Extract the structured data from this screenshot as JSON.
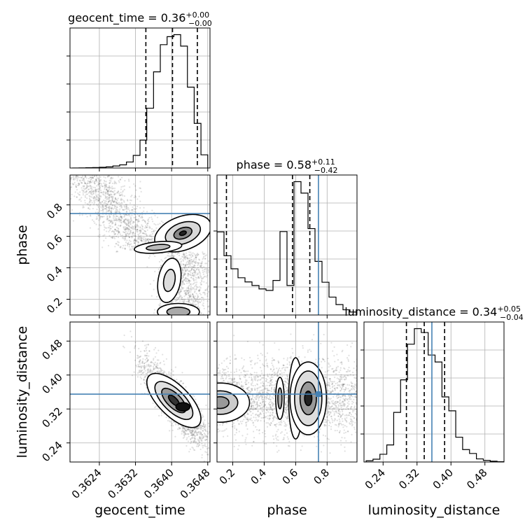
{
  "chart_data": {
    "type": "corner",
    "parameters": [
      "geocent_time",
      "phase",
      "luminosity_distance"
    ],
    "truth_color": "#4682b4",
    "truths": {
      "geocent_time": null,
      "phase": 0.745,
      "luminosity_distance": 0.355
    },
    "ranges": {
      "geocent_time": [
        0.36175,
        0.36485
      ],
      "phase": [
        0.1,
        0.99
      ],
      "luminosity_distance": [
        0.195,
        0.525
      ]
    },
    "titles": {
      "geocent_time": {
        "name": "geocent_time",
        "median": "0.36",
        "plus": "+0.00",
        "minus": "−0.00"
      },
      "phase": {
        "name": "phase",
        "median": "0.58",
        "plus": "+0.11",
        "minus": "−0.42"
      },
      "luminosity_distance": {
        "name": "luminosity_distance",
        "median": "0.34",
        "plus": "+0.05",
        "minus": "−0.04"
      }
    },
    "ticks": {
      "geocent_time": {
        "values": [
          0.3624,
          0.3632,
          0.364,
          0.3648
        ],
        "labels": [
          "0.3624",
          "0.3632",
          "0.3640",
          "0.3648"
        ]
      },
      "phase_x": {
        "values": [
          0.2,
          0.4,
          0.6,
          0.8
        ],
        "labels": [
          "0.2",
          "0.4",
          "0.6",
          "0.8"
        ]
      },
      "phase_y": {
        "values": [
          0.2,
          0.4,
          0.6,
          0.8
        ],
        "labels": [
          "0.2",
          "0.4",
          "0.6",
          "0.8"
        ]
      },
      "luminosity_distance": {
        "values": [
          0.24,
          0.32,
          0.4,
          0.48
        ],
        "labels": [
          "0.24",
          "0.32",
          "0.40",
          "0.48"
        ]
      }
    },
    "quantiles": {
      "geocent_time": [
        0.36343,
        0.36402,
        0.36457
      ],
      "phase": [
        0.16,
        0.58,
        0.69
      ],
      "luminosity_distance": [
        0.295,
        0.337,
        0.385
      ]
    },
    "histograms": {
      "geocent_time": {
        "bins": [
          0.3618,
          0.36195,
          0.3621,
          0.36225,
          0.3624,
          0.36255,
          0.3627,
          0.36285,
          0.363,
          0.36315,
          0.3633,
          0.36345,
          0.3636,
          0.36375,
          0.3639,
          0.36405,
          0.3642,
          0.36435,
          0.3645,
          0.36465,
          0.3648
        ],
        "counts": [
          0,
          1,
          2,
          3,
          5,
          8,
          14,
          22,
          42,
          88,
          195,
          418,
          672,
          862,
          918,
          932,
          852,
          565,
          312,
          92
        ]
      },
      "phase": {
        "bins": [
          0.1,
          0.1445,
          0.189,
          0.2335,
          0.278,
          0.3225,
          0.367,
          0.4115,
          0.456,
          0.5005,
          0.545,
          0.5895,
          0.634,
          0.6785,
          0.723,
          0.7675,
          0.812,
          0.8565,
          0.901,
          0.9455,
          0.99
        ],
        "counts": [
          558,
          398,
          310,
          250,
          222,
          198,
          175,
          165,
          232,
          560,
          198,
          895,
          818,
          580,
          360,
          220,
          120,
          70,
          35,
          20
        ]
      },
      "luminosity_distance": {
        "bins": [
          0.2,
          0.21625,
          0.2325,
          0.24875,
          0.265,
          0.28125,
          0.2975,
          0.31375,
          0.33,
          0.34625,
          0.3625,
          0.37875,
          0.395,
          0.41125,
          0.4275,
          0.44375,
          0.46,
          0.47625,
          0.4925,
          0.50875,
          0.525
        ],
        "counts": [
          8,
          18,
          50,
          110,
          320,
          530,
          760,
          860,
          835,
          690,
          645,
          420,
          330,
          160,
          80,
          55,
          20,
          10,
          5,
          2
        ]
      }
    },
    "grid": true,
    "axis_labels": {
      "geocent_time": "geocent_time",
      "phase": "phase",
      "luminosity_distance": "luminosity_distance"
    }
  }
}
